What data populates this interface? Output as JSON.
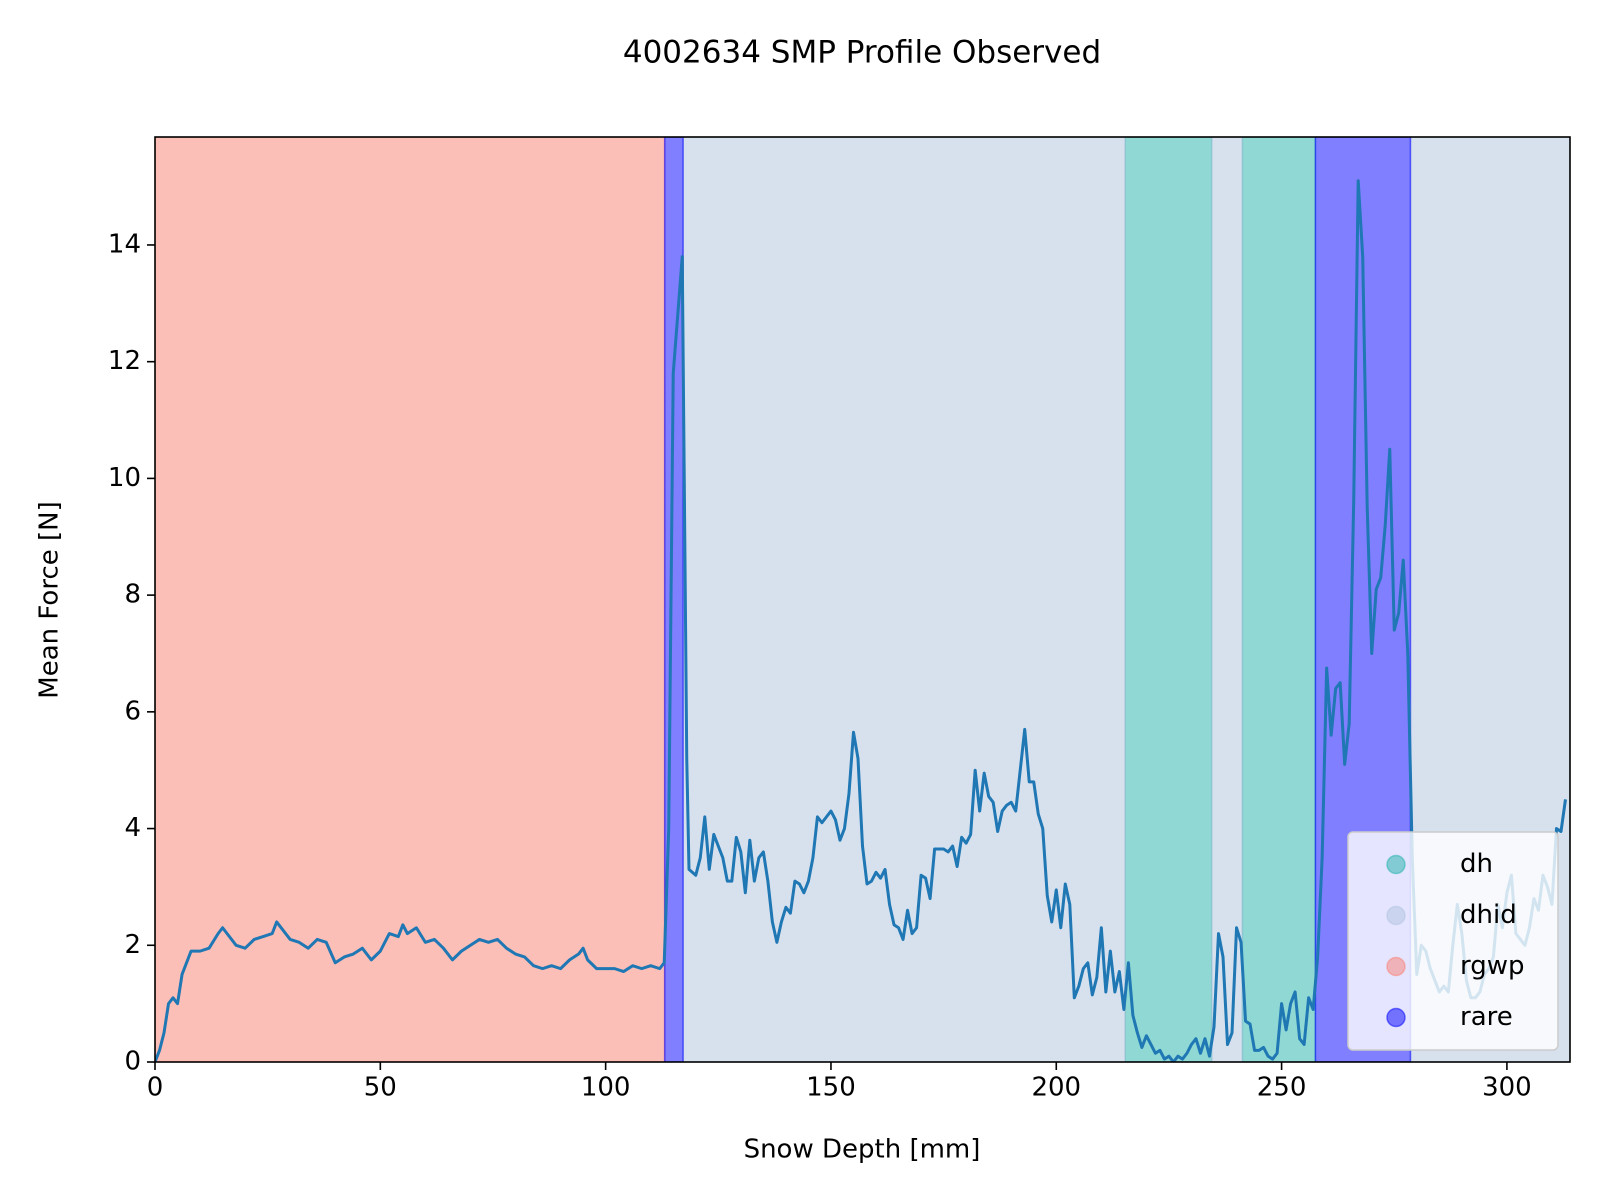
{
  "chart_data": {
    "type": "line",
    "title": "4002634 SMP Profile Observed",
    "xlabel": "Snow Depth [mm]",
    "ylabel": "Mean Force [N]",
    "color": "#1f77b4",
    "xlim": [
      0,
      314
    ],
    "ylim": [
      0,
      15.85
    ],
    "xticks": [
      0,
      50,
      100,
      150,
      200,
      250,
      300
    ],
    "yticks": [
      0,
      2,
      4,
      6,
      8,
      10,
      12,
      14
    ],
    "legend": "lower right",
    "layers": [
      {
        "name": "dh",
        "color": "#20b2aa",
        "ranges": [
          [
            215.3,
            234.5
          ],
          [
            241.3,
            257.5
          ]
        ]
      },
      {
        "name": "dhid",
        "color": "#b0c4de",
        "ranges": [
          [
            117.2,
            215.3
          ],
          [
            234.5,
            241.3
          ],
          [
            278.6,
            314
          ]
        ]
      },
      {
        "name": "rgwp",
        "color": "#fa8072",
        "ranges": [
          [
            0,
            113.1
          ]
        ]
      },
      {
        "name": "rare",
        "color": "#0000ff",
        "ranges": [
          [
            113.1,
            117.2
          ],
          [
            257.5,
            278.6
          ]
        ]
      }
    ],
    "x": [
      0,
      1,
      2,
      3,
      4,
      5,
      6,
      8,
      10,
      12,
      14,
      15,
      16,
      18,
      20,
      22,
      24,
      26,
      27,
      28,
      30,
      32,
      34,
      36,
      38,
      40,
      42,
      44,
      46,
      48,
      50,
      52,
      54,
      55,
      56,
      58,
      60,
      62,
      64,
      66,
      68,
      70,
      72,
      74,
      76,
      78,
      80,
      82,
      84,
      86,
      88,
      90,
      92,
      94,
      95,
      96,
      98,
      100,
      102,
      104,
      106,
      108,
      110,
      112,
      113,
      114,
      115,
      116,
      117,
      118,
      118.5,
      120,
      121,
      122,
      123,
      124,
      126,
      127,
      128,
      129,
      130,
      131,
      132,
      133,
      134,
      135,
      136,
      137,
      138,
      139,
      140,
      141,
      142,
      143,
      144,
      145,
      146,
      147,
      148,
      149,
      150,
      151,
      152,
      153,
      154,
      155,
      156,
      157,
      158,
      159,
      160,
      161,
      162,
      163,
      164,
      165,
      166,
      167,
      168,
      169,
      170,
      171,
      172,
      173,
      175,
      176,
      177,
      178,
      179,
      180,
      181,
      182,
      183,
      184,
      185,
      186,
      187,
      188,
      189,
      190,
      191,
      192,
      193,
      194,
      195,
      196,
      197,
      198,
      199,
      200,
      201,
      202,
      203,
      204,
      205,
      206,
      207,
      208,
      209,
      210,
      211,
      212,
      213,
      214,
      215,
      216,
      217,
      218,
      219,
      220,
      221,
      222,
      223,
      224,
      225,
      226,
      227,
      228,
      229,
      230,
      231,
      232,
      233,
      234,
      235,
      236,
      237,
      238,
      239,
      240,
      241,
      242,
      243,
      244,
      245,
      246,
      247,
      248,
      249,
      250,
      251,
      252,
      253,
      254,
      255,
      256,
      257,
      258,
      259,
      260,
      261,
      262,
      263,
      264,
      265,
      266,
      267,
      268,
      269,
      270,
      271,
      272,
      273,
      274,
      275,
      276,
      277,
      278,
      279,
      280,
      281,
      282,
      283,
      284,
      285,
      286,
      287,
      288,
      289,
      290,
      291,
      292,
      293,
      294,
      295,
      296,
      297,
      298,
      299,
      300,
      301,
      302,
      303,
      304,
      305,
      306,
      307,
      308,
      309,
      310,
      311,
      312,
      313
    ],
    "values": [
      0,
      0.2,
      0.5,
      1.0,
      1.1,
      1.0,
      1.5,
      1.9,
      1.9,
      1.95,
      2.2,
      2.3,
      2.2,
      2.0,
      1.95,
      2.1,
      2.15,
      2.2,
      2.4,
      2.3,
      2.1,
      2.05,
      1.95,
      2.1,
      2.05,
      1.7,
      1.8,
      1.85,
      1.95,
      1.75,
      1.9,
      2.2,
      2.15,
      2.35,
      2.2,
      2.3,
      2.05,
      2.1,
      1.95,
      1.75,
      1.9,
      2.0,
      2.1,
      2.05,
      2.1,
      1.95,
      1.85,
      1.8,
      1.65,
      1.6,
      1.65,
      1.6,
      1.75,
      1.85,
      1.95,
      1.75,
      1.6,
      1.6,
      1.6,
      1.55,
      1.65,
      1.6,
      1.65,
      1.6,
      1.7,
      4.0,
      11.8,
      12.8,
      13.8,
      5.2,
      3.3,
      3.2,
      3.5,
      4.2,
      3.3,
      3.9,
      3.5,
      3.1,
      3.1,
      3.85,
      3.6,
      2.9,
      3.8,
      3.1,
      3.5,
      3.6,
      3.1,
      2.4,
      2.05,
      2.4,
      2.65,
      2.55,
      3.1,
      3.05,
      2.9,
      3.1,
      3.5,
      4.2,
      4.1,
      4.2,
      4.3,
      4.15,
      3.8,
      4.0,
      4.6,
      5.65,
      5.2,
      3.7,
      3.05,
      3.1,
      3.25,
      3.15,
      3.3,
      2.7,
      2.35,
      2.3,
      2.1,
      2.6,
      2.2,
      2.3,
      3.2,
      3.15,
      2.8,
      3.65,
      3.65,
      3.6,
      3.7,
      3.35,
      3.85,
      3.75,
      3.9,
      5.0,
      4.3,
      4.95,
      4.55,
      4.45,
      3.95,
      4.3,
      4.4,
      4.45,
      4.3,
      5.0,
      5.7,
      4.8,
      4.8,
      4.25,
      4.0,
      2.85,
      2.4,
      2.95,
      2.3,
      3.05,
      2.7,
      1.1,
      1.3,
      1.6,
      1.7,
      1.15,
      1.45,
      2.3,
      1.2,
      1.9,
      1.2,
      1.55,
      0.9,
      1.7,
      0.8,
      0.5,
      0.25,
      0.45,
      0.3,
      0.15,
      0.2,
      0.05,
      0.1,
      0.0,
      0.1,
      0.05,
      0.15,
      0.3,
      0.4,
      0.15,
      0.4,
      0.1,
      0.6,
      2.2,
      1.8,
      0.3,
      0.5,
      2.3,
      2.05,
      0.7,
      0.65,
      0.2,
      0.2,
      0.25,
      0.1,
      0.05,
      0.15,
      1.0,
      0.55,
      1.0,
      1.2,
      0.4,
      0.3,
      1.1,
      0.9,
      1.8,
      3.5,
      6.75,
      5.6,
      6.4,
      6.5,
      5.1,
      5.8,
      9.6,
      15.1,
      13.8,
      9.5,
      7.0,
      8.1,
      8.3,
      9.2,
      10.5,
      7.4,
      7.7,
      8.6,
      7.0,
      3.5,
      1.5,
      2.0,
      1.9,
      1.6,
      1.4,
      1.2,
      1.3,
      1.2,
      2.0,
      2.7,
      2.2,
      1.4,
      1.1,
      1.1,
      1.2,
      1.5,
      1.6,
      1.8,
      2.7,
      2.3,
      2.9,
      3.2,
      2.2,
      2.1,
      2.0,
      2.3,
      2.8,
      2.6,
      3.2,
      3.0,
      2.7,
      4.0,
      3.95,
      4.5
    ]
  }
}
